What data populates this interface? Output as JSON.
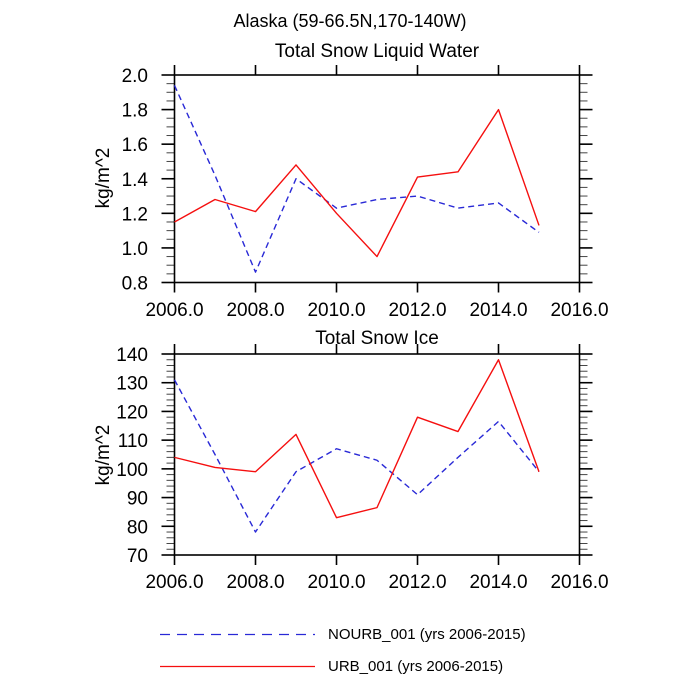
{
  "main_title": "Alaska (59-66.5N,170-140W)",
  "colors": {
    "nourb_line": "#2929d6",
    "urb_line": "#f50f0f",
    "axis": "#000000"
  },
  "legend": {
    "items": [
      {
        "label": "NOURB_001 (yrs 2006-2015)",
        "color": "#2929d6",
        "style": "dashed"
      },
      {
        "label": "URB_001 (yrs 2006-2015)",
        "color": "#f50f0f",
        "style": "solid"
      }
    ]
  },
  "chart_data": [
    {
      "type": "line",
      "title": "Total Snow Liquid Water",
      "ylabel": "kg/m^2",
      "xlabel": "",
      "x": [
        2006,
        2007,
        2008,
        2009,
        2010,
        2011,
        2012,
        2013,
        2014,
        2015
      ],
      "series": [
        {
          "name": "NOURB_001",
          "legend_label": "NOURB_001 (yrs 2006-2015)",
          "color": "#2929d6",
          "line_style": "dashed",
          "values": [
            1.94,
            1.42,
            0.86,
            1.4,
            1.23,
            1.28,
            1.3,
            1.23,
            1.26,
            1.09
          ]
        },
        {
          "name": "URB_001",
          "legend_label": "URB_001 (yrs 2006-2015)",
          "color": "#f50f0f",
          "line_style": "solid",
          "values": [
            1.15,
            1.28,
            1.21,
            1.48,
            1.2,
            0.95,
            1.41,
            1.44,
            1.8,
            1.13
          ]
        }
      ],
      "xlim": [
        2006,
        2016
      ],
      "ylim": [
        0.8,
        2.0
      ],
      "xticks": [
        2006,
        2008,
        2010,
        2012,
        2014,
        2016
      ],
      "xtick_labels": [
        "2006.0",
        "2008.0",
        "2010.0",
        "2012.0",
        "2014.0",
        "2016.0"
      ],
      "ytick_step": 0.2,
      "y_minor_step": 0.05,
      "ytick_labels": [
        "0.8",
        "1.0",
        "1.2",
        "1.4",
        "1.6",
        "1.8",
        "2.0"
      ],
      "grid": false,
      "legend_position": "bottom"
    },
    {
      "type": "line",
      "title": "Total Snow Ice",
      "ylabel": "kg/m^2",
      "xlabel": "",
      "x": [
        2006,
        2007,
        2008,
        2009,
        2010,
        2011,
        2012,
        2013,
        2014,
        2015
      ],
      "series": [
        {
          "name": "NOURB_001",
          "legend_label": "NOURB_001 (yrs 2006-2015)",
          "color": "#2929d6",
          "line_style": "dashed",
          "values": [
            131,
            105,
            78,
            99,
            107,
            103,
            91,
            104,
            116.5,
            99
          ]
        },
        {
          "name": "URB_001",
          "legend_label": "URB_001 (yrs 2006-2015)",
          "color": "#f50f0f",
          "line_style": "solid",
          "values": [
            104,
            100.5,
            99,
            112,
            83,
            86.5,
            118,
            113,
            138,
            99
          ]
        }
      ],
      "xlim": [
        2006,
        2016
      ],
      "ylim": [
        70,
        140
      ],
      "xticks": [
        2006,
        2008,
        2010,
        2012,
        2014,
        2016
      ],
      "xtick_labels": [
        "2006.0",
        "2008.0",
        "2010.0",
        "2012.0",
        "2014.0",
        "2016.0"
      ],
      "ytick_step": 10,
      "y_minor_step": 2,
      "ytick_labels": [
        "70",
        "80",
        "90",
        "100",
        "110",
        "120",
        "130",
        "140"
      ],
      "grid": false,
      "legend_position": "bottom"
    }
  ]
}
